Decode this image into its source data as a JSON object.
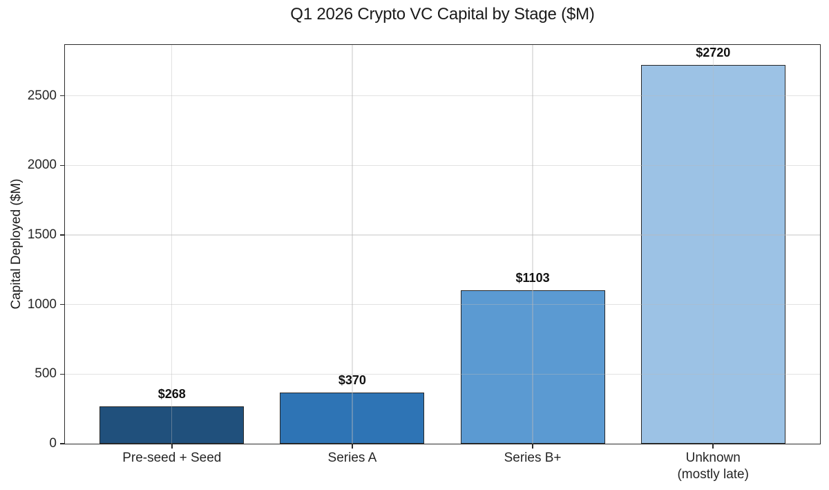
{
  "chart_data": {
    "type": "bar",
    "title": "Q1 2026 Crypto VC Capital by Stage ($M)",
    "xlabel": "",
    "ylabel": "Capital Deployed ($M)",
    "categories": [
      "Pre-seed + Seed",
      "Series A",
      "Series B+",
      "Unknown\n(mostly late)"
    ],
    "values": [
      268,
      370,
      1103,
      2720
    ],
    "bar_labels": [
      "$268",
      "$370",
      "$1103",
      "$2720"
    ],
    "bar_colors": [
      "#20507c",
      "#2e74b5",
      "#5b9ad2",
      "#9cc2e5"
    ],
    "bar_edge_color": "#262626",
    "yticks": [
      0,
      500,
      1000,
      1500,
      2000,
      2500
    ],
    "ylim": [
      0,
      2866
    ],
    "grid": "both",
    "grid_color": "#e4e4e4",
    "legend": "none",
    "frame": "full-box",
    "background": "#ffffff"
  }
}
